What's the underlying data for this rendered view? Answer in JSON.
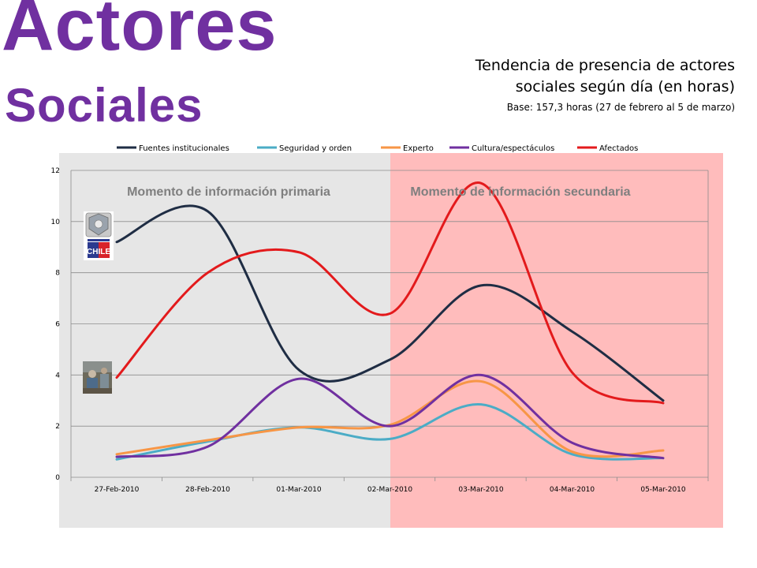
{
  "header": {
    "title_line1": "Actores",
    "title_line2": "Sociales",
    "subtitle_line1": "Tendencia de presencia de actores",
    "subtitle_line2": "sociales según día (en horas)",
    "base_note": "Base: 157,3 horas (27 de febrero al 5 de marzo)"
  },
  "zones": {
    "primary_label": "Momento de información primaria",
    "secondary_label": "Momento de información secundaria",
    "primary_color": "#e6e6e6",
    "secondary_color": "#ffbcbc"
  },
  "icons": {
    "gov_logo": "chile-government-seal-icon",
    "gov_logo_text": "CHILE",
    "photo": "affected-people-photo-icon"
  },
  "chart_data": {
    "type": "line",
    "x": [
      "27-Feb-2010",
      "28-Feb-2010",
      "01-Mar-2010",
      "02-Mar-2010",
      "03-Mar-2010",
      "04-Mar-2010",
      "05-Mar-2010"
    ],
    "ylim": [
      0,
      12
    ],
    "yticks": [
      0,
      2,
      4,
      6,
      8,
      10,
      12
    ],
    "grid": true,
    "legend_position": "top",
    "series": [
      {
        "name": "Fuentes institucionales",
        "color": "#1f2d44",
        "values": [
          9.2,
          10.4,
          4.2,
          4.6,
          7.5,
          5.7,
          3.0
        ]
      },
      {
        "name": "Seguridad y orden",
        "color": "#4bacc6",
        "values": [
          0.7,
          1.4,
          1.95,
          1.5,
          2.85,
          0.9,
          0.75
        ]
      },
      {
        "name": "Experto",
        "color": "#f79646",
        "values": [
          0.9,
          1.45,
          1.95,
          2.05,
          3.75,
          1.0,
          1.05
        ]
      },
      {
        "name": "Cultura/espectáculos",
        "color": "#7030a0",
        "values": [
          0.8,
          1.2,
          3.85,
          2.0,
          4.0,
          1.35,
          0.75
        ]
      },
      {
        "name": "Afectados",
        "color": "#e31a1c",
        "values": [
          3.9,
          8.0,
          8.8,
          6.4,
          11.5,
          4.1,
          2.9
        ]
      }
    ]
  }
}
